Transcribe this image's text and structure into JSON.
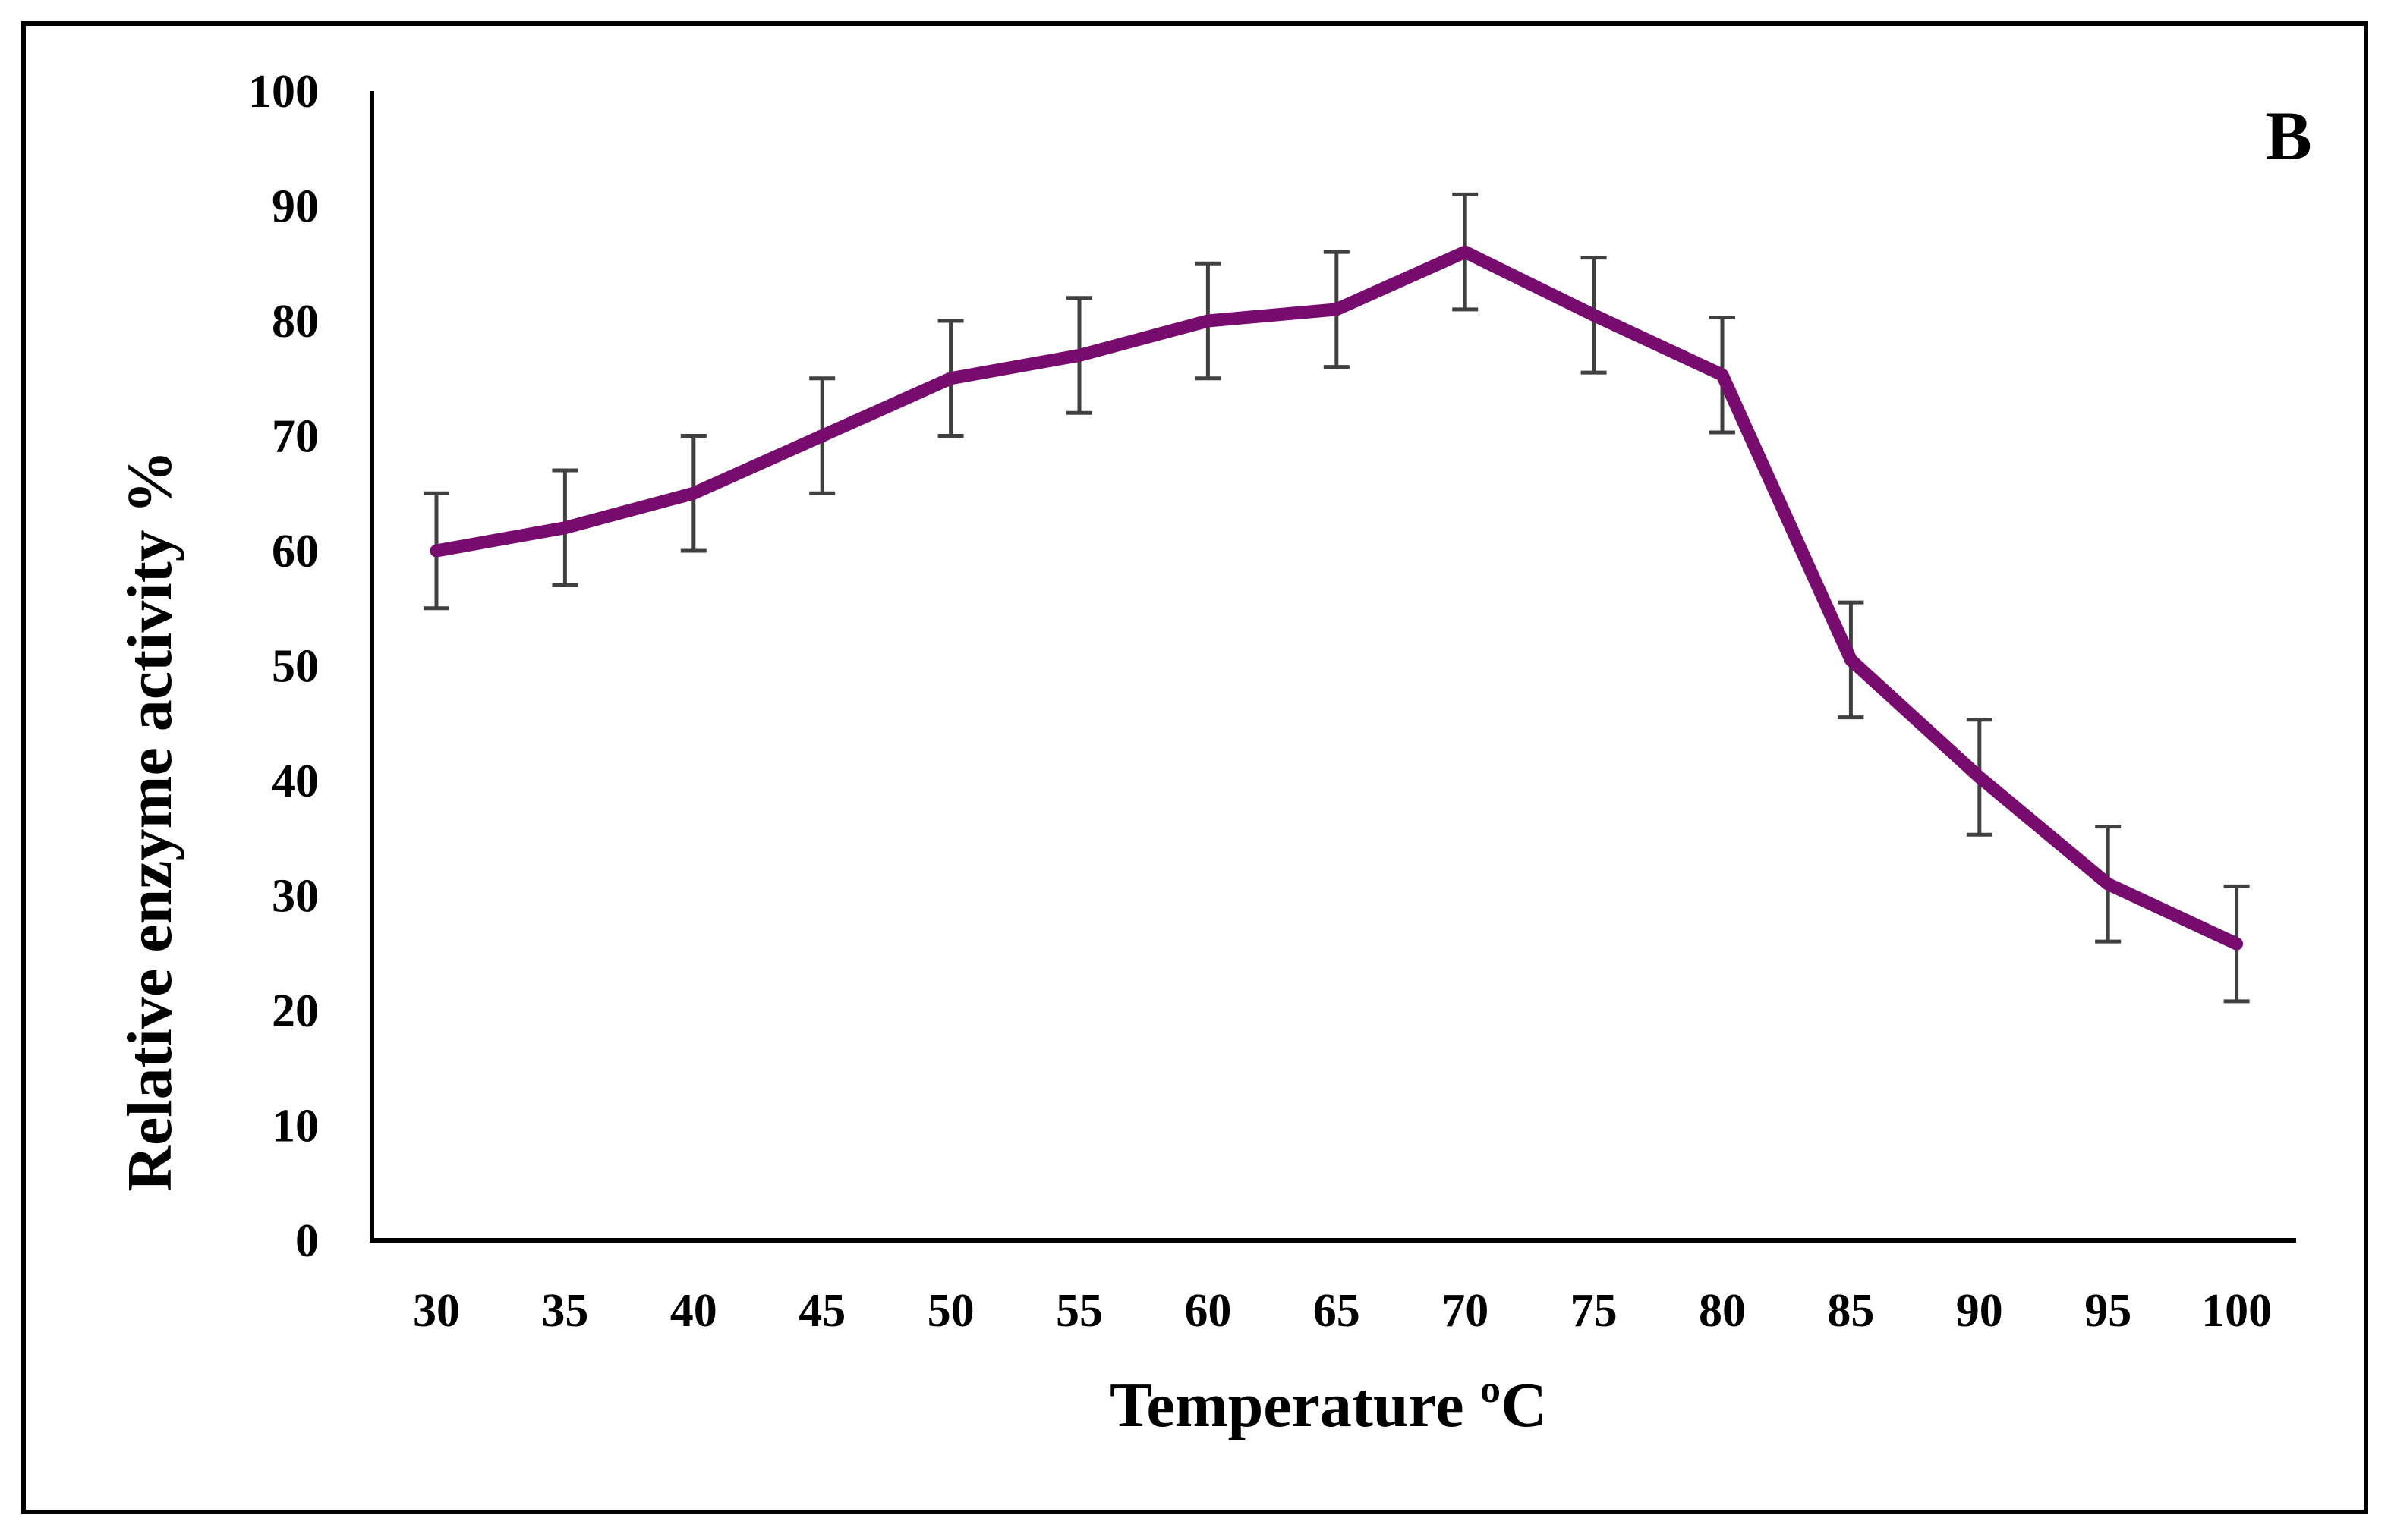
{
  "chart_data": {
    "type": "line",
    "title": "",
    "panel_label": "B",
    "xlabel": "Temperature ºC",
    "ylabel": "Relative enzyme activity  %",
    "categories": [
      "30",
      "35",
      "40",
      "45",
      "50",
      "55",
      "60",
      "65",
      "70",
      "75",
      "80",
      "85",
      "90",
      "95",
      "100"
    ],
    "ylim": [
      0,
      100
    ],
    "yticks": [
      0,
      10,
      20,
      30,
      40,
      50,
      60,
      70,
      80,
      90,
      100
    ],
    "ytick_labels": [
      "0",
      "10",
      "20",
      "30",
      "40",
      "50",
      "60",
      "70",
      "80",
      "90",
      "100"
    ],
    "grid": false,
    "series": [
      {
        "name": "Relative enzyme activity",
        "color": "#780C6E",
        "values": [
          60,
          62,
          65,
          70,
          75,
          77,
          80,
          81,
          86,
          80.5,
          75.3,
          50.5,
          40.3,
          31,
          25.8
        ],
        "error": [
          5,
          5,
          5,
          5,
          5,
          5,
          5,
          5,
          5,
          5,
          5,
          5,
          5,
          5,
          5
        ]
      }
    ],
    "errorbar_color": "#404040",
    "axis_color": "#000000"
  }
}
